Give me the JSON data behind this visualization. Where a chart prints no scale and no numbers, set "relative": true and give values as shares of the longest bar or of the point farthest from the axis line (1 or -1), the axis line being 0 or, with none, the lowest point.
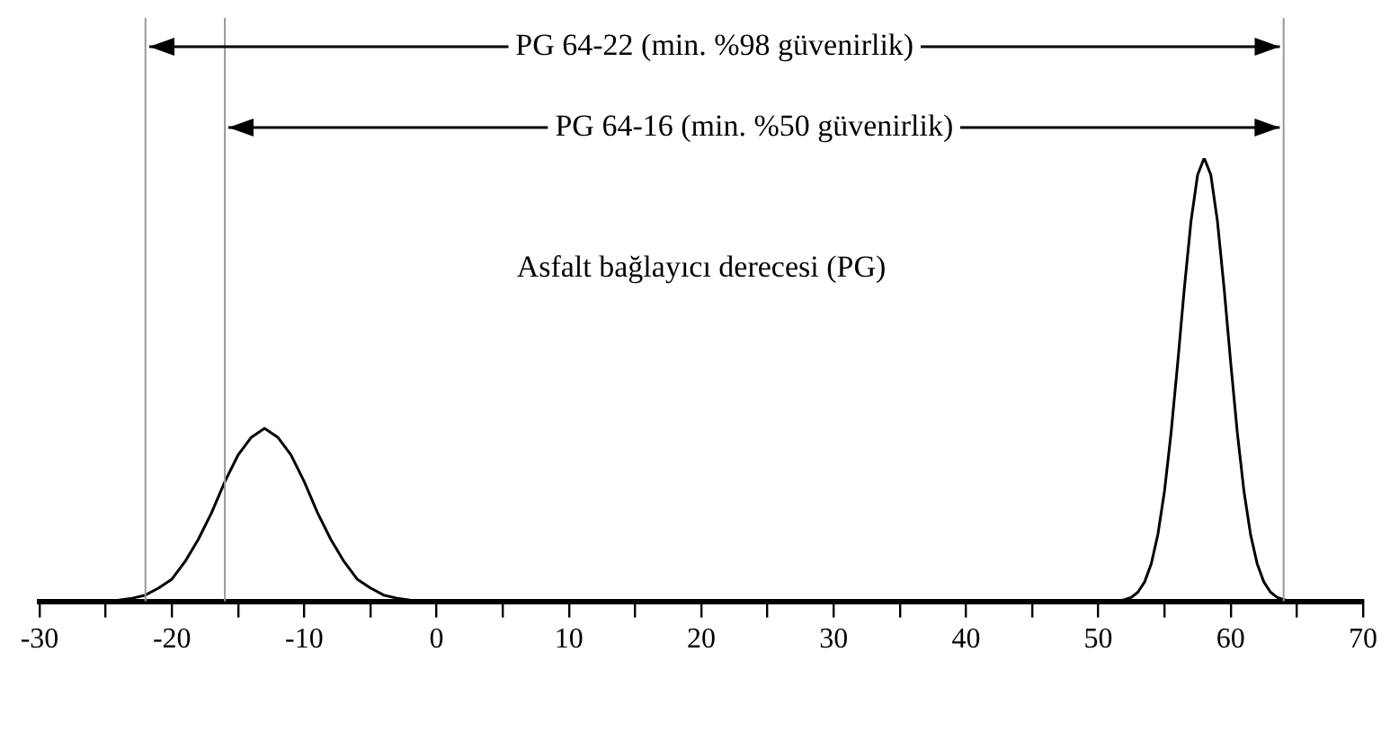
{
  "chart_data": {
    "type": "line",
    "relative": true,
    "marker": "none",
    "line_style": "solid",
    "grid": false,
    "legend": false,
    "tick_labels": "x",
    "xlim": [
      -30,
      70
    ],
    "xticks": [
      -30,
      {
        "value": -25,
        "label": null
      },
      -20,
      {
        "value": -15,
        "label": null
      },
      -10,
      {
        "value": -5,
        "label": null
      },
      0,
      {
        "value": 5,
        "label": null
      },
      10,
      {
        "value": 15,
        "label": null
      },
      20,
      {
        "value": 25,
        "label": null
      },
      30,
      {
        "value": 35,
        "label": null
      },
      40,
      {
        "value": 45,
        "label": null
      },
      50,
      {
        "value": 55,
        "label": null
      },
      60,
      {
        "value": 65,
        "label": null
      },
      70
    ],
    "series": [
      {
        "color": "#000000",
        "x": [
          -25,
          -24,
          -23,
          -22,
          -21,
          -20,
          -19,
          -18,
          -17,
          -16,
          -15,
          -14,
          -13,
          -12,
          -11,
          -10,
          -9,
          -8,
          -7,
          -6,
          -5,
          -4,
          -3,
          -2,
          -1,
          0
        ],
        "values": [
          0,
          0.003,
          0.007,
          0.014,
          0.03,
          0.05,
          0.09,
          0.14,
          0.2,
          0.27,
          0.33,
          0.37,
          0.39,
          0.37,
          0.33,
          0.27,
          0.2,
          0.14,
          0.09,
          0.05,
          0.03,
          0.014,
          0.007,
          0.003,
          0,
          0
        ]
      },
      {
        "color": "#000000",
        "x": [
          51,
          51.5,
          52,
          52.5,
          53,
          53.5,
          54,
          54.5,
          55,
          55.5,
          56,
          56.5,
          57,
          57.5,
          58,
          58.5,
          59,
          59.5,
          60,
          60.5,
          61,
          61.5,
          62,
          62.5,
          63,
          63.5,
          64,
          64.5,
          65
        ],
        "values": [
          0,
          0.001,
          0.004,
          0.009,
          0.021,
          0.044,
          0.085,
          0.151,
          0.249,
          0.381,
          0.539,
          0.707,
          0.857,
          0.962,
          1,
          0.962,
          0.857,
          0.707,
          0.539,
          0.381,
          0.249,
          0.151,
          0.085,
          0.044,
          0.021,
          0.009,
          0.004,
          0.001,
          0
        ]
      }
    ],
    "ref_lines": [
      {
        "axis": "x",
        "value": -22,
        "color": "#999999"
      },
      {
        "axis": "x",
        "value": -16,
        "color": "#999999"
      },
      {
        "axis": "x",
        "value": 64,
        "color": "#999999"
      }
    ],
    "annotations": [
      "PG 64-22 (min. %98 güvenirlik)",
      "PG 64-16 (min. %50 güvenirlik)",
      "Asfalt bağlayıcı derecesi (PG)"
    ]
  }
}
